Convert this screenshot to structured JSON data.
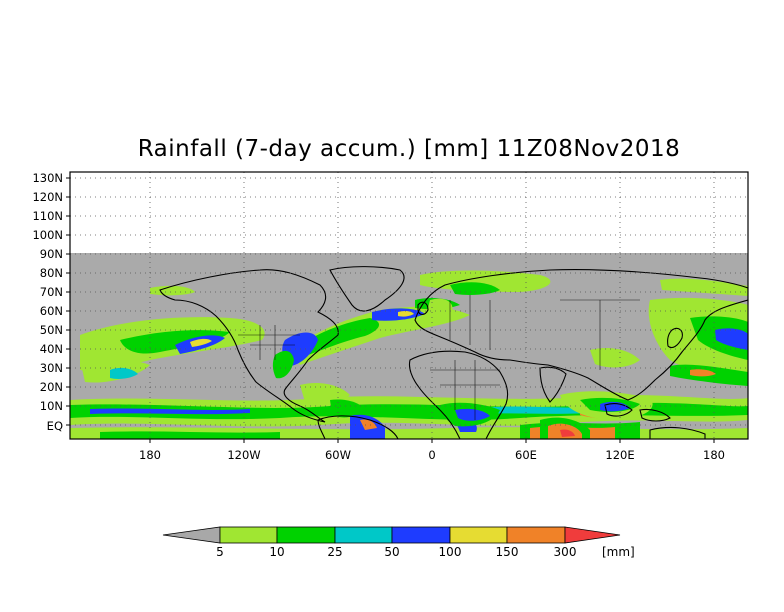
{
  "title": "Rainfall (7-day accum.) [mm] 11Z08Nov2018",
  "lat_ticks": [
    "130N",
    "120N",
    "110N",
    "100N",
    "90N",
    "80N",
    "70N",
    "60N",
    "50N",
    "40N",
    "30N",
    "20N",
    "10N",
    "EQ"
  ],
  "lon_ticks": [
    "180",
    "120W",
    "60W",
    "0",
    "60E",
    "120E",
    "180"
  ],
  "colorbar": {
    "labels": [
      "5",
      "10",
      "25",
      "50",
      "100",
      "150",
      "300"
    ],
    "unit": "[mm]",
    "colors": [
      "#a8a8a8",
      "#a0e632",
      "#00d200",
      "#00c8c8",
      "#1e3cff",
      "#e6dc32",
      "#f08228",
      "#f03c3c"
    ]
  },
  "map": {
    "no_data_color": "#aaaaaa",
    "coast_color": "#000000"
  }
}
